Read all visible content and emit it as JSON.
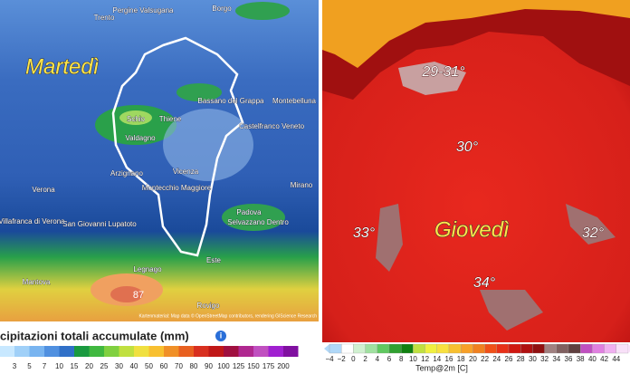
{
  "left_panel": {
    "day_label": "Martedì",
    "places": [
      "Trento",
      "Pergine Valsugana",
      "Borgo",
      "Bassano del Grappa",
      "Montebelluna",
      "Schio",
      "Thiene",
      "Valdagno",
      "Castelfranco Veneto",
      "Arzignano",
      "Vicenza",
      "Montecchio Maggiore",
      "Verona",
      "Villafranca di Verona",
      "San Giovanni Lupatoto",
      "Padova",
      "Selvazzano Dentro",
      "Mirano",
      "Este",
      "Legnago",
      "Rovigo",
      "Mantova"
    ],
    "max_value": "87",
    "attribution": "Kartenmaterial: Map data © OpenStreetMap contributors, rendering GIScience Research",
    "legend": {
      "title": "cipitazioni totali accumulate (mm)",
      "labels": [
        "3",
        "5",
        "7",
        "10",
        "15",
        "20",
        "25",
        "30",
        "40",
        "50",
        "60",
        "70",
        "80",
        "90",
        "100",
        "125",
        "150",
        "175",
        "200"
      ]
    }
  },
  "right_panel": {
    "day_label": "Giovedì",
    "temperatures": [
      "29-31°",
      "30°",
      "33°",
      "32°",
      "34°"
    ],
    "legend": {
      "labels": [
        "−4",
        "−2",
        "0",
        "2",
        "4",
        "6",
        "8",
        "10",
        "12",
        "14",
        "16",
        "18",
        "20",
        "22",
        "24",
        "26",
        "28",
        "30",
        "32",
        "34",
        "36",
        "38",
        "40",
        "42",
        "44"
      ],
      "title": "Temp@2m [C]"
    }
  }
}
